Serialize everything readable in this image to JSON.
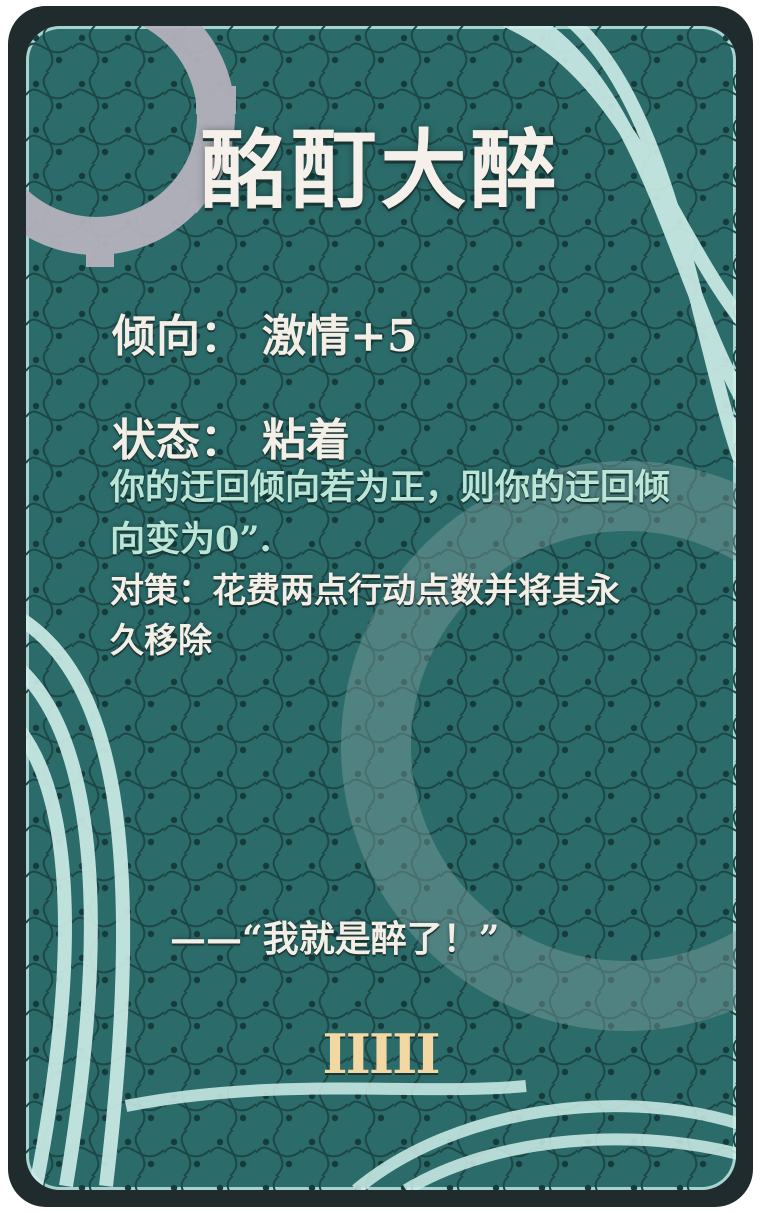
{
  "card": {
    "title": "酩酊大醉",
    "tendency": {
      "label": "倾向：",
      "value": "激情+5"
    },
    "status": {
      "label": "状态：",
      "value": "粘着"
    },
    "effect": "你的迂回倾向若为正，则你的迂回倾向变为0”.",
    "counter": "对策：花费两点行动点数并将其永久移除",
    "quote": "——“我就是醉了！”",
    "tier": "IIIII"
  },
  "colors": {
    "background": "#2b6b6a",
    "frame": "#1f2b2c",
    "accent_text": "#b9e6d6",
    "tier_text": "#f3d8a4"
  },
  "icons": [
    "gear-icon",
    "swirl-decoration"
  ]
}
